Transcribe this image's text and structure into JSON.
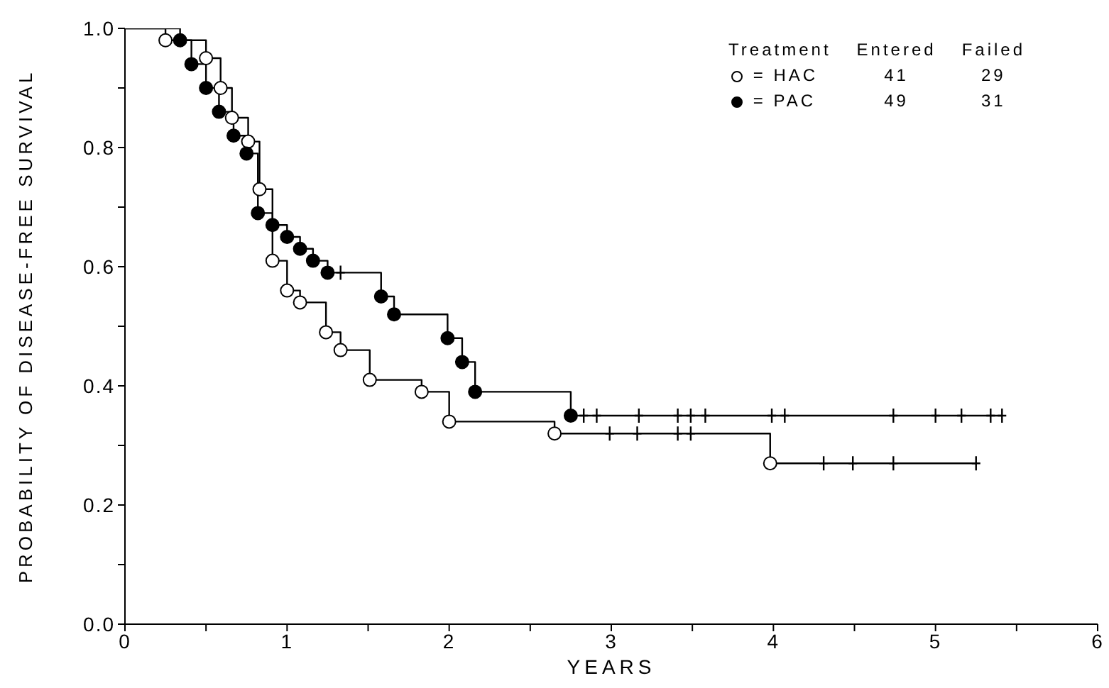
{
  "chart_data": {
    "type": "step",
    "xlabel": "YEARS",
    "ylabel": "PROBABILITY OF DISEASE-FREE SURVIVAL",
    "legend": "top right",
    "legend_title": "Treatment",
    "annotations": [
      "Entered",
      "Failed",
      "41",
      "29",
      "49",
      "31",
      "="
    ],
    "xlim": [
      0,
      6
    ],
    "ylim": [
      0,
      1
    ],
    "xticks": [
      0,
      {
        "value": 0.5,
        "label": null
      },
      1,
      {
        "value": 1.5,
        "label": null
      },
      2,
      {
        "value": 2.5,
        "label": null
      },
      3,
      {
        "value": 3.5,
        "label": null
      },
      4,
      {
        "value": 4.5,
        "label": null
      },
      5,
      {
        "value": 5.5,
        "label": null
      },
      6
    ],
    "yticks": [
      {
        "value": 0,
        "label": "0.0"
      },
      {
        "value": 0.1,
        "label": null
      },
      {
        "value": 0.2,
        "label": "0.2"
      },
      {
        "value": 0.3,
        "label": null
      },
      {
        "value": 0.4,
        "label": "0.4"
      },
      {
        "value": 0.5,
        "label": null
      },
      {
        "value": 0.6,
        "label": "0.6"
      },
      {
        "value": 0.7,
        "label": null
      },
      {
        "value": 0.8,
        "label": "0.8"
      },
      {
        "value": 0.9,
        "label": null
      },
      {
        "value": 1,
        "label": "1.0"
      }
    ],
    "grid": false,
    "series": [
      {
        "color": "#000000",
        "marker": "none",
        "x": [
          0,
          0.25,
          0.5,
          0.59,
          0.66,
          0.76,
          0.83,
          0.91,
          1.0,
          1.08,
          1.24,
          1.33,
          1.51,
          1.83,
          2.0,
          2.65,
          3.98,
          5.25
        ],
        "values": [
          1,
          0.98,
          0.95,
          0.9,
          0.85,
          0.81,
          0.73,
          0.61,
          0.56,
          0.54,
          0.49,
          0.46,
          0.41,
          0.39,
          0.34,
          0.32,
          0.27,
          0.27
        ]
      },
      {
        "type": "scatter",
        "name": "HAC",
        "color": "#ffffff",
        "marker": "circle",
        "x": [
          0.25,
          0.5,
          0.59,
          0.66,
          0.76,
          0.83,
          0.91,
          1.0,
          1.08,
          1.24,
          1.33,
          1.51,
          1.83,
          2.0,
          2.65,
          3.98
        ],
        "values": [
          0.98,
          0.95,
          0.9,
          0.85,
          0.81,
          0.73,
          0.61,
          0.56,
          0.54,
          0.49,
          0.46,
          0.41,
          0.39,
          0.34,
          0.32,
          0.27
        ]
      },
      {
        "type": "scatter",
        "color": "#000000",
        "marker": "cross",
        "x": [
          2.99,
          3.16,
          3.41,
          3.49,
          4.31,
          4.49,
          4.74,
          5.25
        ],
        "values": [
          0.32,
          0.32,
          0.32,
          0.32,
          0.27,
          0.27,
          0.27,
          0.27
        ]
      },
      {
        "color": "#000000",
        "marker": "none",
        "x": [
          0,
          0.34,
          0.41,
          0.5,
          0.58,
          0.67,
          0.75,
          0.82,
          0.91,
          1.0,
          1.08,
          1.16,
          1.25,
          1.58,
          1.66,
          1.99,
          2.08,
          2.16,
          2.75,
          5.41
        ],
        "values": [
          1,
          0.98,
          0.94,
          0.9,
          0.86,
          0.82,
          0.79,
          0.69,
          0.67,
          0.65,
          0.63,
          0.61,
          0.59,
          0.55,
          0.52,
          0.48,
          0.44,
          0.39,
          0.35,
          0.35
        ]
      },
      {
        "type": "scatter",
        "name": "PAC",
        "color": "#000000",
        "marker": "circle",
        "x": [
          0.34,
          0.41,
          0.5,
          0.58,
          0.67,
          0.75,
          0.82,
          0.91,
          1.0,
          1.08,
          1.16,
          1.25,
          1.58,
          1.66,
          1.99,
          2.08,
          2.16,
          2.75
        ],
        "values": [
          0.98,
          0.94,
          0.9,
          0.86,
          0.82,
          0.79,
          0.69,
          0.67,
          0.65,
          0.63,
          0.61,
          0.59,
          0.55,
          0.52,
          0.48,
          0.44,
          0.39,
          0.35
        ]
      },
      {
        "type": "scatter",
        "color": "#000000",
        "marker": "cross",
        "x": [
          1.33,
          2.83,
          2.91,
          3.17,
          3.41,
          3.49,
          3.58,
          3.99,
          4.07,
          4.74,
          5.0,
          5.16,
          5.34,
          5.41
        ],
        "values": [
          0.59,
          0.35,
          0.35,
          0.35,
          0.35,
          0.35,
          0.35,
          0.35,
          0.35,
          0.35,
          0.35,
          0.35,
          0.35,
          0.35
        ]
      }
    ]
  }
}
